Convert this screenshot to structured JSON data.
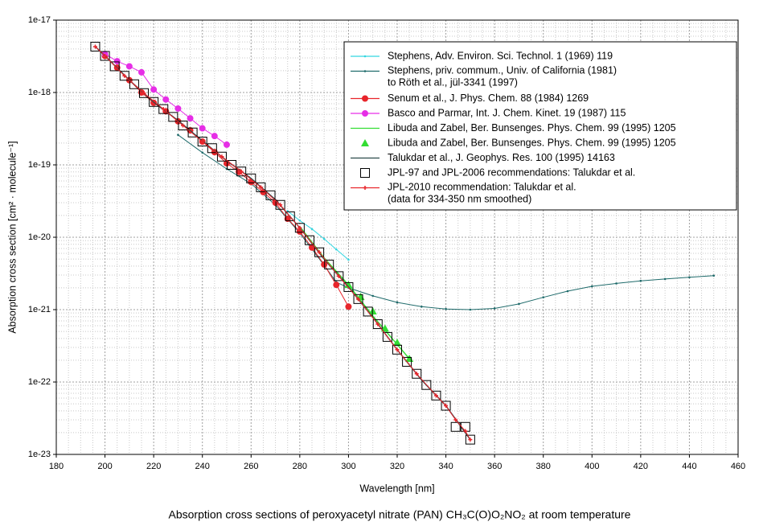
{
  "chart_data": {
    "type": "line",
    "title": "Absorption cross sections of peroxyacetyl nitrate (PAN) CH₃C(O)O₂NO₂ at room temperature",
    "x_label": "Wavelength [nm]",
    "y_label": "Absorption cross section [cm² · molecule⁻¹]",
    "xlim": [
      180,
      460
    ],
    "xticks": [
      180,
      200,
      220,
      240,
      260,
      280,
      300,
      320,
      340,
      360,
      380,
      400,
      420,
      440,
      460
    ],
    "ylim": [
      1e-23,
      1e-17
    ],
    "yticks": [
      1e-23,
      1e-22,
      1e-21,
      1e-20,
      1e-19,
      1e-18,
      1e-17
    ],
    "log_y": true,
    "grid": true,
    "legend": "upper right",
    "series": [
      {
        "name": "Stephens, Adv. Environ. Sci. Technol. 1 (1969) 119",
        "color": "#33d6e0",
        "line": true,
        "marker": "dot",
        "x": [
          275,
          280,
          285,
          290,
          295,
          300
        ],
        "values": [
          2.3e-20,
          1.7e-20,
          1.3e-20,
          9.5e-21,
          6.8e-21,
          4.9e-21
        ]
      },
      {
        "name": "Stephens, priv. commum., Univ. of California (1981)\nto Röth et al., jül-3341 (1997)",
        "color": "#1f6b6b",
        "line": true,
        "marker": "dot",
        "x": [
          230,
          240,
          250,
          260,
          270,
          280,
          290,
          295,
          300,
          310,
          320,
          330,
          340,
          350,
          360,
          370,
          380,
          390,
          400,
          410,
          420,
          430,
          440,
          450
        ],
        "values": [
          2.6e-19,
          1.48e-19,
          8.8e-20,
          5.5e-20,
          2.8e-20,
          1.14e-20,
          4.1e-21,
          2.4e-21,
          2e-21,
          1.55e-21,
          1.26e-21,
          1.1e-21,
          1.02e-21,
          1e-21,
          1.04e-21,
          1.2e-21,
          1.48e-21,
          1.8e-21,
          2.1e-21,
          2.3e-21,
          2.5e-21,
          2.65e-21,
          2.8e-21,
          2.95e-21
        ]
      },
      {
        "name": "Senum et al., J. Phys. Chem. 88 (1984) 1269",
        "color": "#e8252b",
        "line": true,
        "marker": "circle",
        "x": [
          200,
          205,
          210,
          215,
          220,
          225,
          230,
          235,
          240,
          245,
          250,
          255,
          260,
          265,
          270,
          275,
          280,
          285,
          290,
          295,
          300
        ],
        "values": [
          3.2e-18,
          2.2e-18,
          1.48e-18,
          1e-18,
          7.2e-19,
          5.5e-19,
          4e-19,
          3e-19,
          2.1e-19,
          1.5e-19,
          1.05e-19,
          8e-20,
          5.8e-20,
          4.2e-20,
          3e-20,
          1.8e-20,
          1.2e-20,
          7.2e-21,
          4.2e-21,
          2.2e-21,
          1.1e-21
        ]
      },
      {
        "name": "Basco and Parmar, Int. J. Chem. Kinet. 19 (1987) 115",
        "color": "#e62ee6",
        "line": true,
        "marker": "circle",
        "x": [
          200,
          205,
          210,
          215,
          220,
          225,
          230,
          235,
          240,
          245,
          250
        ],
        "values": [
          3.4e-18,
          2.7e-18,
          2.3e-18,
          1.9e-18,
          1.1e-18,
          8e-19,
          6e-19,
          4.4e-19,
          3.2e-19,
          2.5e-19,
          1.9e-19
        ]
      },
      {
        "name": "Libuda and Zabel, Ber. Bunsenges. Phys. Chem. 99 (1995) 1205",
        "color": "#33dd33",
        "line": true,
        "marker": "none",
        "x": [
          280,
          290,
          300,
          310,
          320,
          325
        ],
        "values": [
          1.4e-20,
          5.2e-21,
          2.2e-21,
          8.2e-22,
          3.3e-22,
          2.1e-22
        ]
      },
      {
        "name": "Libuda and Zabel, Ber. Bunsenges. Phys. Chem. 99 (1995) 1205",
        "color": "#33dd33",
        "line": false,
        "marker": "triangle",
        "x": [
          300,
          305,
          310,
          315,
          320,
          325
        ],
        "values": [
          2.2e-21,
          1.5e-21,
          9.5e-22,
          5.5e-22,
          3.5e-22,
          2.1e-22
        ]
      },
      {
        "name": "Talukdar et al., J. Geophys. Res. 100 (1995) 14163",
        "color": "#2a4a4a",
        "line": true,
        "marker": "none",
        "x": [
          196,
          200,
          210,
          220,
          230,
          240,
          250,
          260,
          270,
          280,
          290,
          300,
          310,
          320,
          330,
          340,
          350
        ],
        "values": [
          4.3e-18,
          3.2e-18,
          1.48e-18,
          7.4e-19,
          4.1e-19,
          2.15e-19,
          1.14e-19,
          6.5e-20,
          3.3e-20,
          1.35e-20,
          5e-21,
          2.05e-21,
          7.8e-22,
          2.8e-22,
          1.07e-22,
          4.7e-23,
          1.6e-23
        ]
      },
      {
        "name": "JPL-97 and JPL-2006 recommendations: Talukdar et al.",
        "color": "#000000",
        "line": false,
        "marker": "square",
        "x": [
          196,
          200,
          204,
          208,
          212,
          216,
          220,
          224,
          228,
          232,
          236,
          240,
          244,
          248,
          252,
          256,
          260,
          264,
          268,
          272,
          276,
          280,
          284,
          288,
          292,
          296,
          300,
          304,
          308,
          312,
          316,
          320,
          324,
          328,
          332,
          336,
          340,
          344,
          348,
          350
        ],
        "values": [
          4.3e-18,
          3.2e-18,
          2.3e-18,
          1.7e-18,
          1.3e-18,
          9.8e-19,
          7.4e-19,
          5.9e-19,
          4.6e-19,
          3.5e-19,
          2.8e-19,
          2.1e-19,
          1.7e-19,
          1.3e-19,
          1e-19,
          8.1e-20,
          6.5e-20,
          4.9e-20,
          3.8e-20,
          2.8e-20,
          1.95e-20,
          1.35e-20,
          9.1e-21,
          6.2e-21,
          4.2e-21,
          2.9e-21,
          2.05e-21,
          1.4e-21,
          9.4e-22,
          6.3e-22,
          4.2e-22,
          2.8e-22,
          1.9e-22,
          1.3e-22,
          9.1e-23,
          6.5e-23,
          4.7e-23,
          2.4e-23,
          2.4e-23,
          1.6e-23
        ]
      },
      {
        "name": "JPL-2010 recommendation: Talukdar et al.\n(data for 334-350 nm smoothed)",
        "color": "#e8252b",
        "line": true,
        "marker": "plus",
        "x": [
          196,
          200,
          208,
          216,
          224,
          232,
          240,
          248,
          256,
          264,
          272,
          280,
          288,
          296,
          304,
          312,
          320,
          328,
          336,
          340,
          344,
          348,
          350
        ],
        "values": [
          4.3e-18,
          3.2e-18,
          1.7e-18,
          9.8e-19,
          5.9e-19,
          3.5e-19,
          2.1e-19,
          1.3e-19,
          8.1e-20,
          4.9e-20,
          2.8e-20,
          1.35e-20,
          6.2e-21,
          2.9e-21,
          1.4e-21,
          6.3e-22,
          2.8e-22,
          1.3e-22,
          6.5e-23,
          4.7e-23,
          3e-23,
          2.1e-23,
          1.6e-23
        ]
      }
    ]
  }
}
